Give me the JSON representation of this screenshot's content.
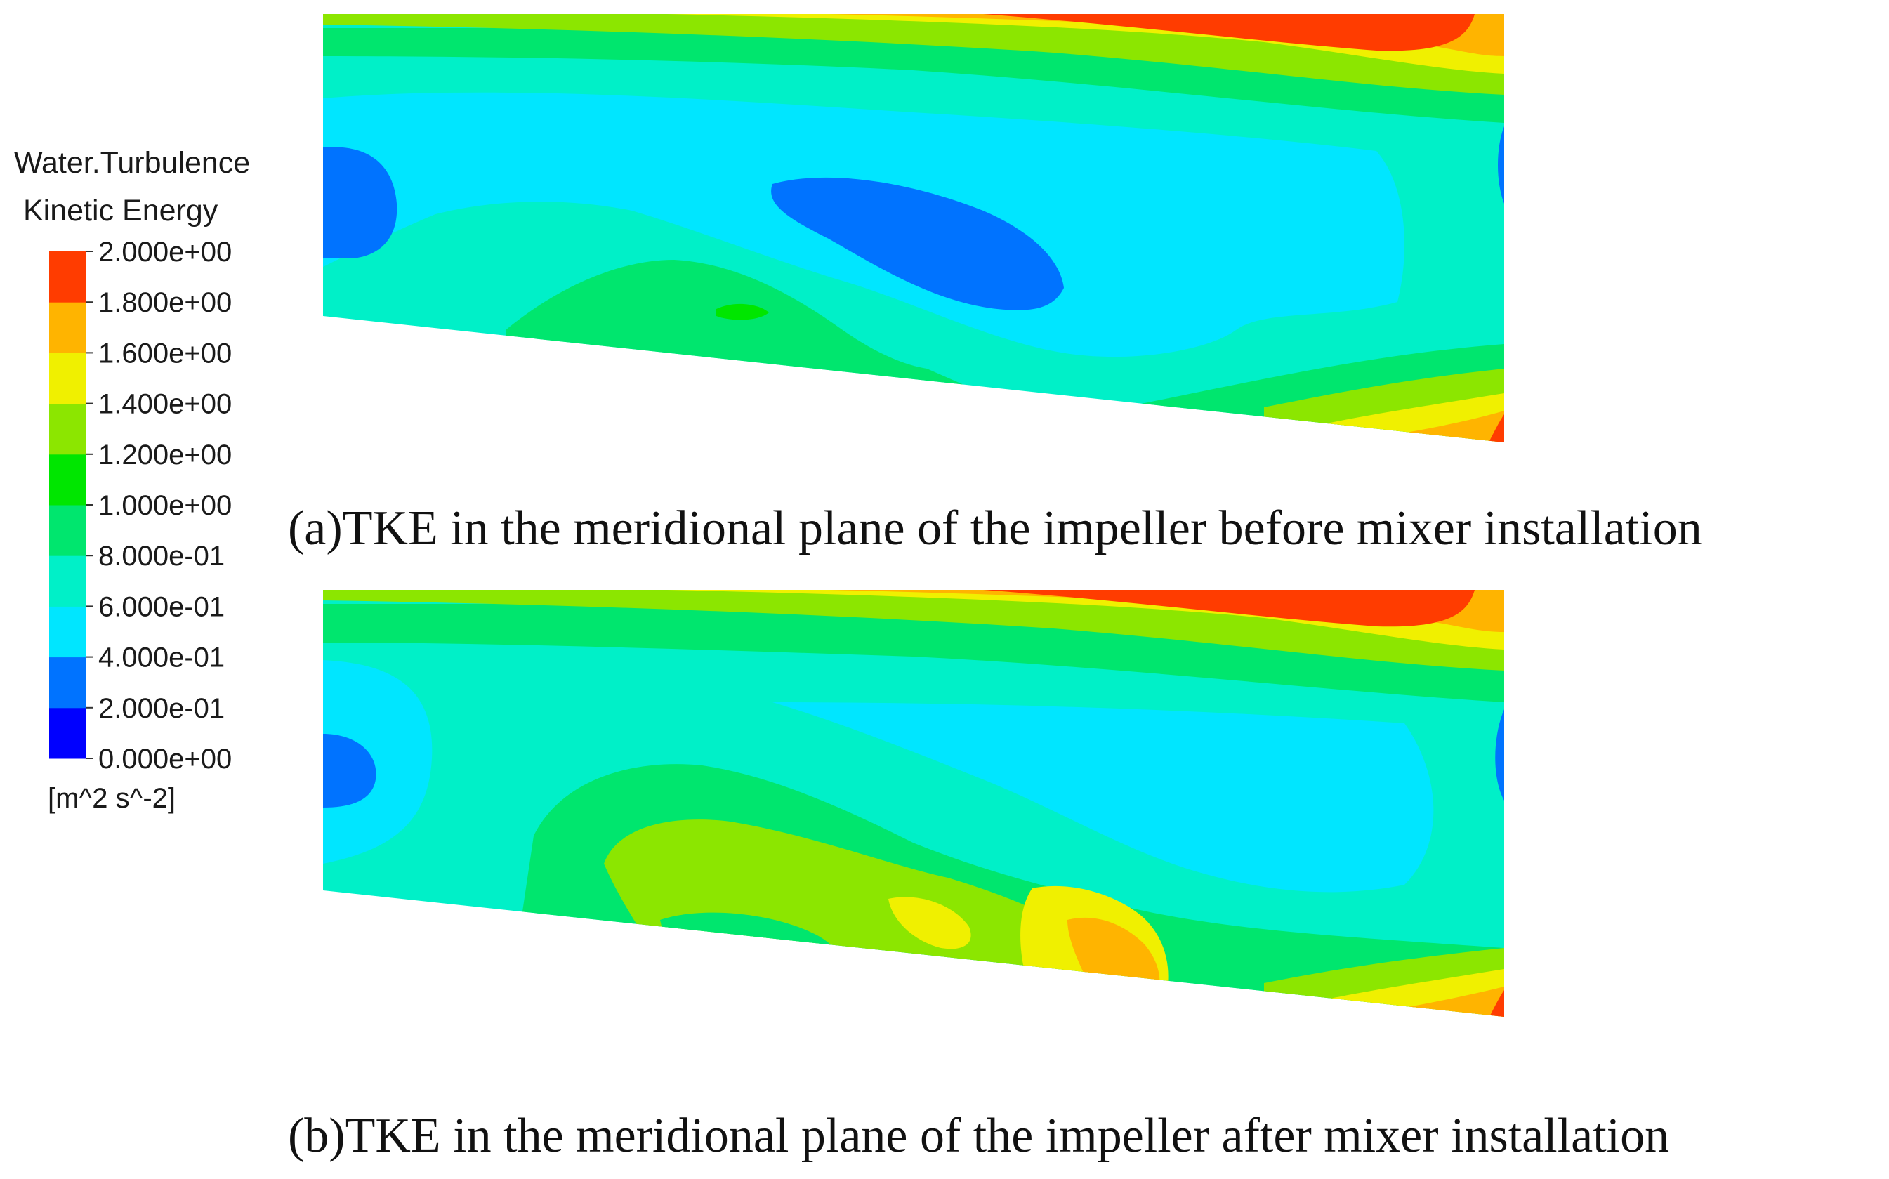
{
  "chart_data": {
    "type": "heatmap",
    "legend": {
      "title_line1": "Water.Turbulence",
      "title_line2": "Kinetic Energy",
      "unit": "[m^2 s^-2]",
      "range": [
        0,
        2
      ],
      "tick_labels": [
        "2.000e+00",
        "1.800e+00",
        "1.600e+00",
        "1.400e+00",
        "1.200e+00",
        "1.000e+00",
        "8.000e-01",
        "6.000e-01",
        "4.000e-01",
        "2.000e-01",
        "0.000e+00"
      ],
      "level_colors": [
        "#0000ff",
        "#0073ff",
        "#00e6ff",
        "#00f0c8",
        "#00e66e",
        "#00e600",
        "#8ce600",
        "#f0f000",
        "#ffb400",
        "#ff3c00"
      ]
    },
    "panels": [
      {
        "caption": "(a)TKE in the meridional plane of the impeller before mixer installation"
      },
      {
        "caption": "(b)TKE in the meridional plane of the impeller after mixer installation"
      }
    ]
  }
}
